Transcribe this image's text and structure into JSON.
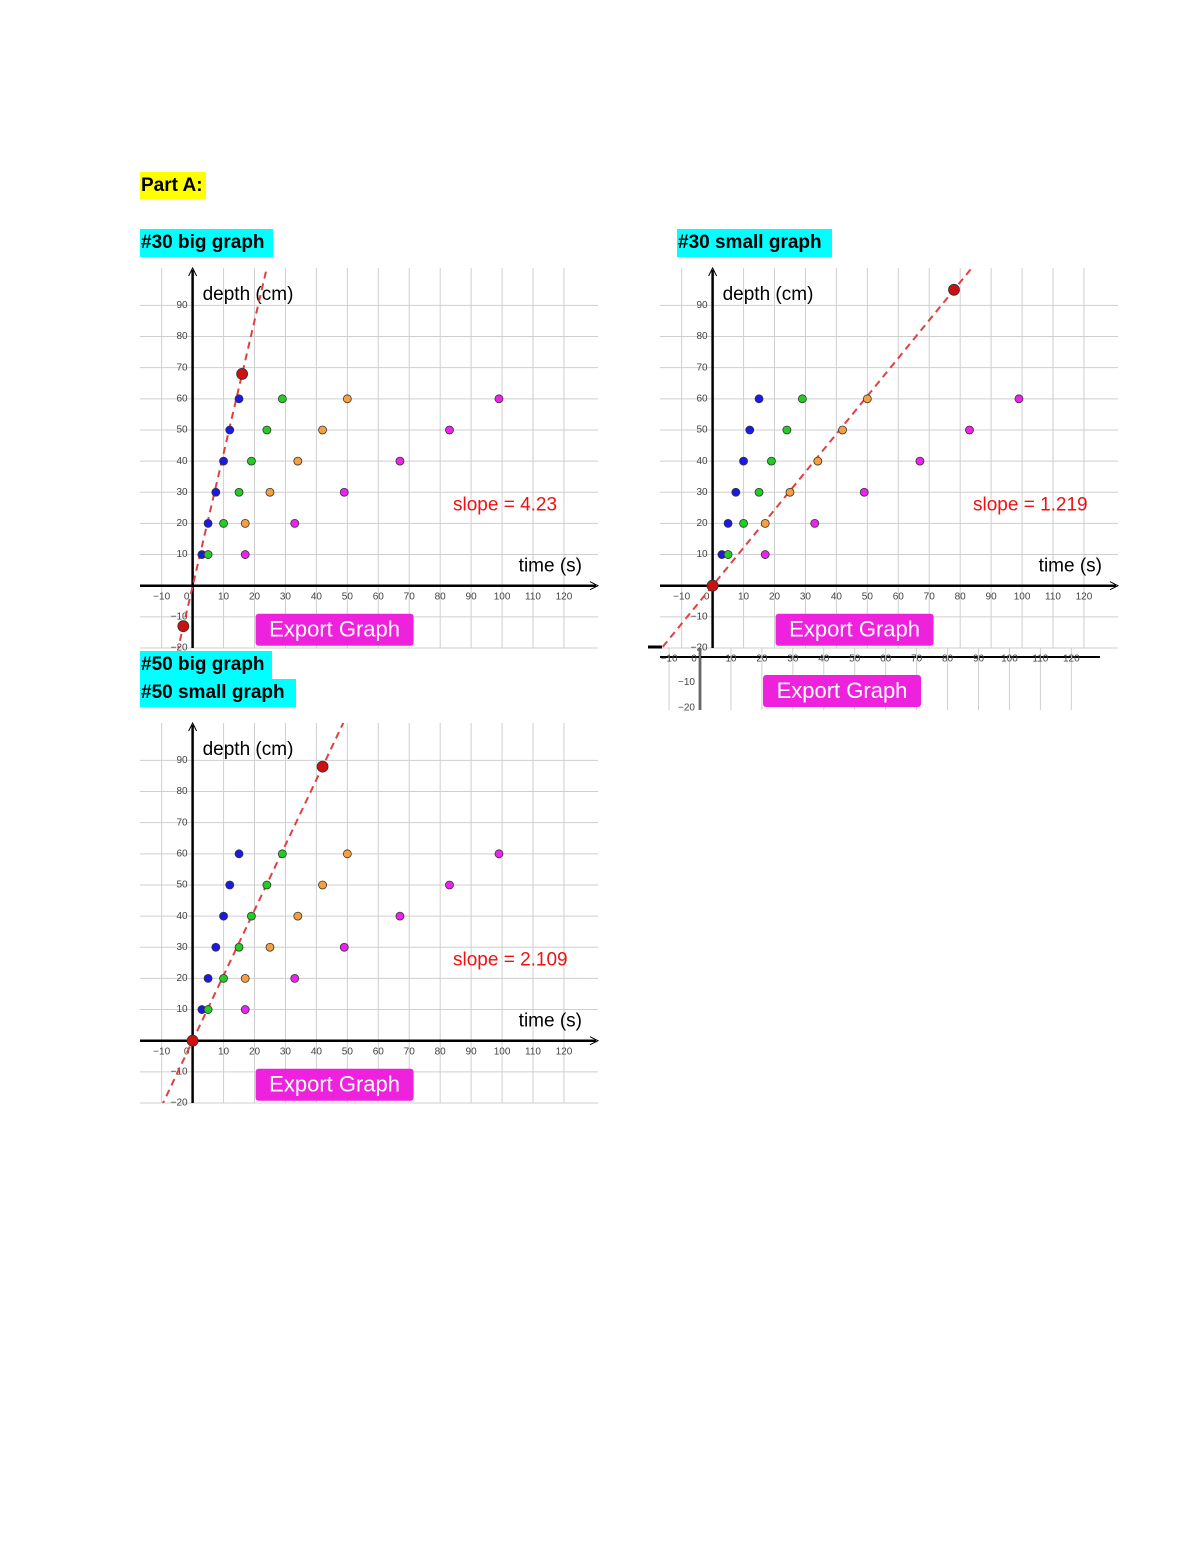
{
  "headings": [
    "Part A:",
    "#30 big graph",
    "#30 small graph",
    "#50 big graph",
    "#50 small graph"
  ],
  "chart_data": [
    {
      "type": "scatter",
      "x_label": "time (s)",
      "y_label": "depth (cm)",
      "annotation": "slope = 4.23",
      "button": "Export Graph",
      "xlim": [
        -17,
        131
      ],
      "ylim": [
        -20,
        102
      ],
      "xticks": [
        {
          "value": -10,
          "label": "−10"
        },
        0,
        10,
        20,
        30,
        40,
        50,
        60,
        70,
        80,
        90,
        100,
        110,
        120
      ],
      "yticks": [
        {
          "value": -20,
          "label": "−20"
        },
        {
          "value": -10,
          "label": "−10"
        },
        10,
        20,
        30,
        40,
        50,
        60,
        70,
        80,
        90
      ],
      "grid": true,
      "trendline_color": "#e04040",
      "series": [
        {
          "color": "#1a1ae6",
          "x": [
            3,
            5,
            7.5,
            10,
            12,
            15
          ],
          "values": [
            10,
            20,
            30,
            40,
            50,
            60
          ]
        },
        {
          "color": "#22cc22",
          "x": [
            5,
            10,
            15,
            19,
            24,
            29
          ],
          "values": [
            10,
            20,
            30,
            40,
            50,
            60
          ]
        },
        {
          "color": "#f5a040",
          "x": [
            17,
            25,
            34,
            42,
            50
          ],
          "values": [
            20,
            30,
            40,
            50,
            60
          ]
        },
        {
          "color": "#ee22ee",
          "x": [
            17,
            33,
            49,
            67,
            83,
            99
          ],
          "values": [
            10,
            20,
            30,
            40,
            50,
            60
          ]
        },
        {
          "color": "#cc1111",
          "x": [
            16,
            -3
          ],
          "values": [
            68,
            -13
          ]
        }
      ]
    },
    {
      "type": "scatter",
      "x_label": "time (s)",
      "y_label": "depth (cm)",
      "annotation": "slope = 1.219",
      "button": "Export Graph",
      "xlim": [
        -17,
        131
      ],
      "ylim": [
        -20,
        102
      ],
      "xticks": [
        {
          "value": -10,
          "label": "−10"
        },
        0,
        10,
        20,
        30,
        40,
        50,
        60,
        70,
        80,
        90,
        100,
        110,
        120
      ],
      "yticks": [
        {
          "value": -20,
          "label": "−20"
        },
        {
          "value": -10,
          "label": "−10"
        },
        10,
        20,
        30,
        40,
        50,
        60,
        70,
        80,
        90
      ],
      "grid": true,
      "trendline_color": "#e04040",
      "series": [
        {
          "color": "#1a1ae6",
          "x": [
            3,
            5,
            7.5,
            10,
            12,
            15
          ],
          "values": [
            10,
            20,
            30,
            40,
            50,
            60
          ]
        },
        {
          "color": "#22cc22",
          "x": [
            5,
            10,
            15,
            19,
            24,
            29
          ],
          "values": [
            10,
            20,
            30,
            40,
            50,
            60
          ]
        },
        {
          "color": "#f5a040",
          "x": [
            17,
            25,
            34,
            42,
            50
          ],
          "values": [
            20,
            30,
            40,
            50,
            60
          ]
        },
        {
          "color": "#ee22ee",
          "x": [
            17,
            33,
            49,
            67,
            83,
            99
          ],
          "values": [
            10,
            20,
            30,
            40,
            50,
            60
          ]
        },
        {
          "color": "#cc1111",
          "x": [
            78,
            0
          ],
          "values": [
            95,
            0
          ]
        }
      ]
    },
    {
      "type": "scatter",
      "x_label": "time (s)",
      "y_label": "depth (cm)",
      "annotation": "slope = 2.109",
      "button": "Export Graph",
      "xlim": [
        -17,
        131
      ],
      "ylim": [
        -20,
        102
      ],
      "xticks": [
        {
          "value": -10,
          "label": "−10"
        },
        0,
        10,
        20,
        30,
        40,
        50,
        60,
        70,
        80,
        90,
        100,
        110,
        120
      ],
      "yticks": [
        {
          "value": -20,
          "label": "−20"
        },
        {
          "value": -10,
          "label": "−10"
        },
        10,
        20,
        30,
        40,
        50,
        60,
        70,
        80,
        90
      ],
      "grid": true,
      "trendline_color": "#e04040",
      "series": [
        {
          "color": "#1a1ae6",
          "x": [
            3,
            5,
            7.5,
            10,
            12,
            15
          ],
          "values": [
            10,
            20,
            30,
            40,
            50,
            60
          ]
        },
        {
          "color": "#22cc22",
          "x": [
            5,
            10,
            15,
            19,
            24,
            29
          ],
          "values": [
            10,
            20,
            30,
            40,
            50,
            60
          ]
        },
        {
          "color": "#f5a040",
          "x": [
            17,
            25,
            34,
            42,
            50
          ],
          "values": [
            20,
            30,
            40,
            50,
            60
          ]
        },
        {
          "color": "#ee22ee",
          "x": [
            17,
            33,
            49,
            67,
            83,
            99
          ],
          "values": [
            10,
            20,
            30,
            40,
            50,
            60
          ]
        },
        {
          "color": "#cc1111",
          "x": [
            42,
            0
          ],
          "values": [
            88,
            0
          ]
        }
      ]
    }
  ]
}
